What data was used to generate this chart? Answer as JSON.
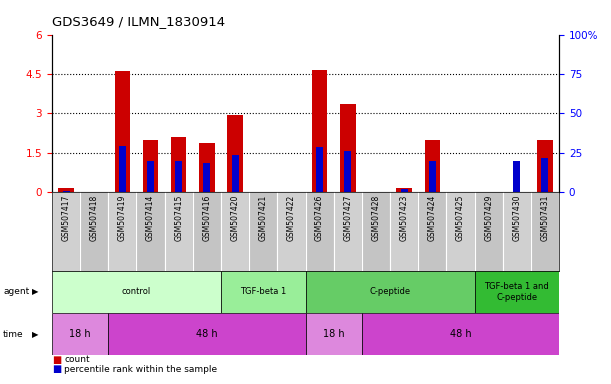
{
  "title": "GDS3649 / ILMN_1830914",
  "samples": [
    "GSM507417",
    "GSM507418",
    "GSM507419",
    "GSM507414",
    "GSM507415",
    "GSM507416",
    "GSM507420",
    "GSM507421",
    "GSM507422",
    "GSM507426",
    "GSM507427",
    "GSM507428",
    "GSM507423",
    "GSM507424",
    "GSM507425",
    "GSM507429",
    "GSM507430",
    "GSM507431"
  ],
  "red_values": [
    0.15,
    0.0,
    4.6,
    2.0,
    2.1,
    1.85,
    2.95,
    0.0,
    0.0,
    4.65,
    3.35,
    0.0,
    0.15,
    2.0,
    0.0,
    0.0,
    0.0,
    2.0
  ],
  "blue_values": [
    0.03,
    0.0,
    1.75,
    1.2,
    1.2,
    1.1,
    1.4,
    0.0,
    0.0,
    1.7,
    1.55,
    0.0,
    0.12,
    1.2,
    0.0,
    0.0,
    1.2,
    1.3
  ],
  "ylim_left": [
    0,
    6
  ],
  "ylim_right": [
    0,
    100
  ],
  "yticks_left": [
    0,
    1.5,
    3.0,
    4.5,
    6
  ],
  "ytick_labels_left": [
    "0",
    "1.5",
    "3",
    "4.5",
    "6"
  ],
  "ytick_labels_right": [
    "0",
    "25",
    "50",
    "75",
    "100%"
  ],
  "agent_groups": [
    {
      "label": "control",
      "start": 0,
      "end": 6
    },
    {
      "label": "TGF-beta 1",
      "start": 6,
      "end": 9
    },
    {
      "label": "C-peptide",
      "start": 9,
      "end": 15
    },
    {
      "label": "TGF-beta 1 and\nC-peptide",
      "start": 15,
      "end": 18
    }
  ],
  "agent_colors": [
    "#ccffcc",
    "#99ee99",
    "#66cc66",
    "#33bb33"
  ],
  "time_groups": [
    {
      "label": "18 h",
      "start": 0,
      "end": 2
    },
    {
      "label": "48 h",
      "start": 2,
      "end": 9
    },
    {
      "label": "18 h",
      "start": 9,
      "end": 11
    },
    {
      "label": "48 h",
      "start": 11,
      "end": 18
    }
  ],
  "time_color_18": "#dd88dd",
  "time_color_48": "#cc44cc",
  "bar_color": "#cc0000",
  "blue_color": "#0000cc",
  "bg_color": "#ffffff",
  "grid_color": "#000000",
  "cell_color": "#cccccc",
  "label_count": "count",
  "label_pct": "percentile rank within the sample"
}
